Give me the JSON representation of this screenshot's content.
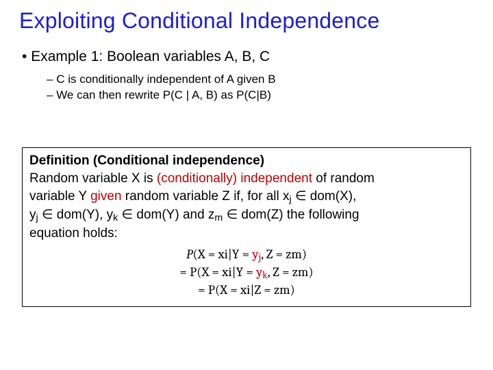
{
  "title": "Exploiting Conditional Independence",
  "bullet1": "Example 1: Boolean variables A, B, C",
  "sub1": "C is conditionally independent of A given B",
  "sub2": "We can then rewrite P(C | A, B) as P(C|B)",
  "def": {
    "heading": "Definition (Conditional independence)",
    "line_pre1": "Random variable X is ",
    "cond_indep": "(conditionally) independent",
    "line_post1": " of random",
    "line_pre2": "variable Y ",
    "given": "given",
    "line_post2": " random variable Z if, for all x",
    "line_post2b": " ∈ dom(X),",
    "line3": " ∈ dom(Y), y",
    "line3b": " ∈ dom(Y) and z",
    "line3c": " ∈ dom(Z) the following",
    "line4": "equation holds:"
  },
  "eq": {
    "lhs_a": "P",
    "lhs_b": "(X = xi|Y = ",
    "yj": "y",
    "yj_sub": "j",
    "mid": ", Z = zm)",
    "r2a": "= P(X = xi|Y = ",
    "yk": "y",
    "yk_sub": "k",
    "r2b": ", Z = zm)",
    "r3": "= P(X = xi|Z = zm)"
  },
  "colors": {
    "title": "#1c1cd8",
    "accent": "#c00000",
    "text": "#000000",
    "bg": "#ffffff",
    "border": "#000000"
  },
  "typography": {
    "title_fontsize": 32,
    "body_fontsize": 19,
    "bullet1_fontsize": 21,
    "bullet2_fontsize": 17
  }
}
